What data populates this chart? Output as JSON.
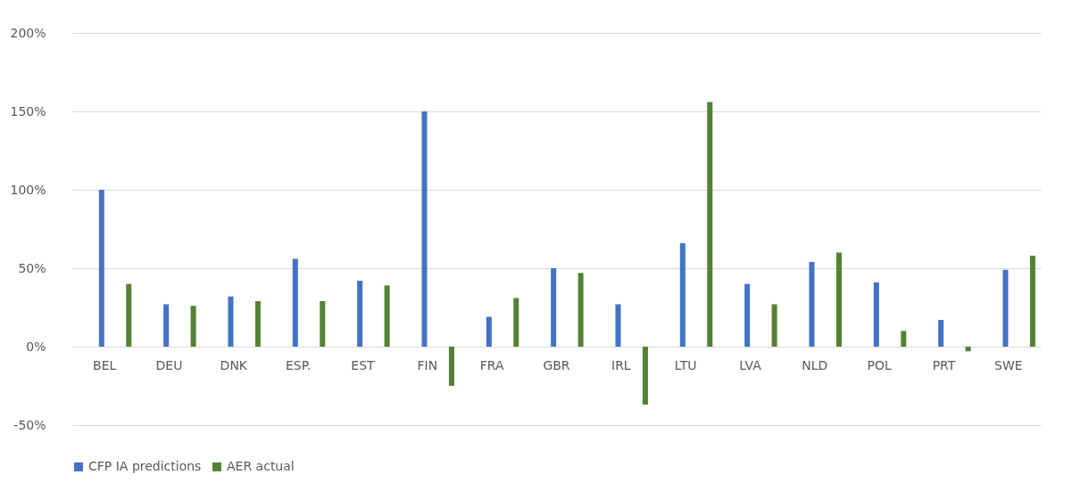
{
  "chart_data": {
    "type": "bar",
    "categories": [
      "BEL",
      "DEU",
      "DNK",
      "ESP.",
      "EST",
      "FIN",
      "FRA",
      "GBR",
      "IRL",
      "LTU",
      "LVA",
      "NLD",
      "POL",
      "PRT",
      "SWE"
    ],
    "series": [
      {
        "name": "CFP IA predictions",
        "color": "#4472c4",
        "values": [
          100,
          27,
          32,
          56,
          42,
          150,
          19,
          50,
          27,
          66,
          40,
          54,
          41,
          17,
          49
        ]
      },
      {
        "name": "AER actual",
        "color": "#548235",
        "values": [
          40,
          26,
          29,
          29,
          39,
          -25,
          31,
          47,
          -37,
          156,
          27,
          60,
          10,
          -3,
          58
        ]
      }
    ],
    "ylim": [
      -50,
      200
    ],
    "yticks": [
      {
        "value": -50,
        "label": "-50%"
      },
      {
        "value": 0,
        "label": "0%"
      },
      {
        "value": 50,
        "label": "50%"
      },
      {
        "value": 100,
        "label": "100%"
      },
      {
        "value": 150,
        "label": "150%"
      },
      {
        "value": 200,
        "label": "200%"
      }
    ],
    "grid": "y",
    "legend": "bottom"
  }
}
